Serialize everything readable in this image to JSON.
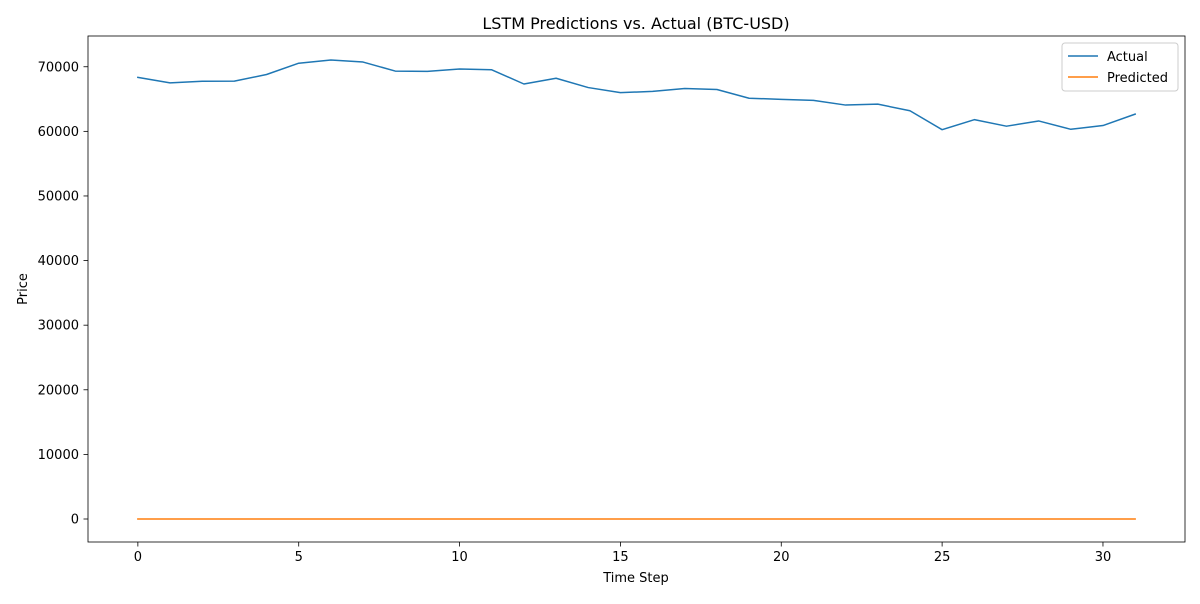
{
  "chart_data": {
    "type": "line",
    "title": "LSTM Predictions vs. Actual (BTC-USD)",
    "xlabel": "Time Step",
    "ylabel": "Price",
    "xlim": [
      -1.55,
      32.55
    ],
    "ylim": [
      -3560,
      74760
    ],
    "xticks": [
      0,
      5,
      10,
      15,
      20,
      25,
      30
    ],
    "yticks": [
      0,
      10000,
      20000,
      30000,
      40000,
      50000,
      60000,
      70000
    ],
    "grid": false,
    "legend_position": "top-right",
    "x": [
      0,
      1,
      2,
      3,
      4,
      5,
      6,
      7,
      8,
      9,
      10,
      11,
      12,
      13,
      14,
      15,
      16,
      17,
      18,
      19,
      20,
      21,
      22,
      23,
      24,
      25,
      26,
      27,
      28,
      29,
      30,
      31
    ],
    "series": [
      {
        "name": "Actual",
        "color": "#1f77b4",
        "values": [
          68350,
          67500,
          67750,
          67780,
          68800,
          70550,
          71050,
          70730,
          69330,
          69290,
          69650,
          69530,
          67330,
          68220,
          66780,
          66000,
          66180,
          66640,
          66480,
          65130,
          64950,
          64790,
          64070,
          64210,
          63190,
          60260,
          61810,
          60800,
          61610,
          60320,
          60900,
          62670
        ]
      },
      {
        "name": "Predicted",
        "color": "#ff7f0e",
        "values": [
          0,
          0,
          0,
          0,
          0,
          0,
          0,
          0,
          0,
          0,
          0,
          0,
          0,
          0,
          0,
          0,
          0,
          0,
          0,
          0,
          0,
          0,
          0,
          0,
          0,
          0,
          0,
          0,
          0,
          0,
          0,
          0
        ]
      }
    ]
  }
}
